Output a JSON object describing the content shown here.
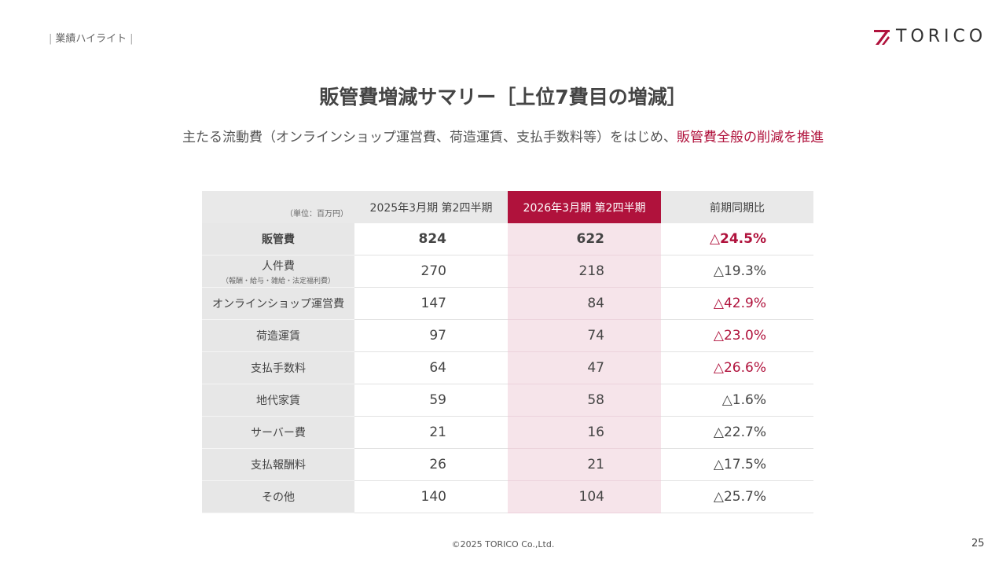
{
  "header": {
    "section": "業績ハイライト",
    "logo_text": "TORICO"
  },
  "title": "販管費増減サマリー［上位7費目の増減］",
  "subtitle": {
    "prefix": "主たる流動費（オンラインショップ運営費、荷造運賃、支払手数料等）をはじめ、",
    "highlight": "販管費全般の削減を推進"
  },
  "table": {
    "unit_label": "（単位：百万円）",
    "columns": [
      "2025年3月期 第2四半期",
      "2026年3月期 第2四半期",
      "前期同期比"
    ],
    "rows": [
      {
        "label": "販管費",
        "note": "",
        "prev": "824",
        "curr": "622",
        "change": "△24.5%",
        "highlight": true
      },
      {
        "label": "人件費",
        "note": "（報酬・給与・雑給・法定福利費）",
        "prev": "270",
        "curr": "218",
        "change": "△19.3%",
        "highlight": false
      },
      {
        "label": "オンラインショップ運営費",
        "note": "",
        "prev": "147",
        "curr": "84",
        "change": "△42.9%",
        "highlight": true
      },
      {
        "label": "荷造運賃",
        "note": "",
        "prev": "97",
        "curr": "74",
        "change": "△23.0%",
        "highlight": true
      },
      {
        "label": "支払手数料",
        "note": "",
        "prev": "64",
        "curr": "47",
        "change": "△26.6%",
        "highlight": true
      },
      {
        "label": "地代家賃",
        "note": "",
        "prev": "59",
        "curr": "58",
        "change": "△1.6%",
        "highlight": false
      },
      {
        "label": "サーバー費",
        "note": "",
        "prev": "21",
        "curr": "16",
        "change": "△22.7%",
        "highlight": false
      },
      {
        "label": "支払報酬料",
        "note": "",
        "prev": "26",
        "curr": "21",
        "change": "△17.5%",
        "highlight": false
      },
      {
        "label": "その他",
        "note": "",
        "prev": "140",
        "curr": "104",
        "change": "△25.7%",
        "highlight": false
      }
    ]
  },
  "footer": {
    "copyright": "©2025 TORICO Co.,Ltd.",
    "page": "25"
  },
  "colors": {
    "accent": "#b0123c",
    "row_header_bg": "#e7e7e7",
    "current_col_bg": "#f6e4ea"
  }
}
